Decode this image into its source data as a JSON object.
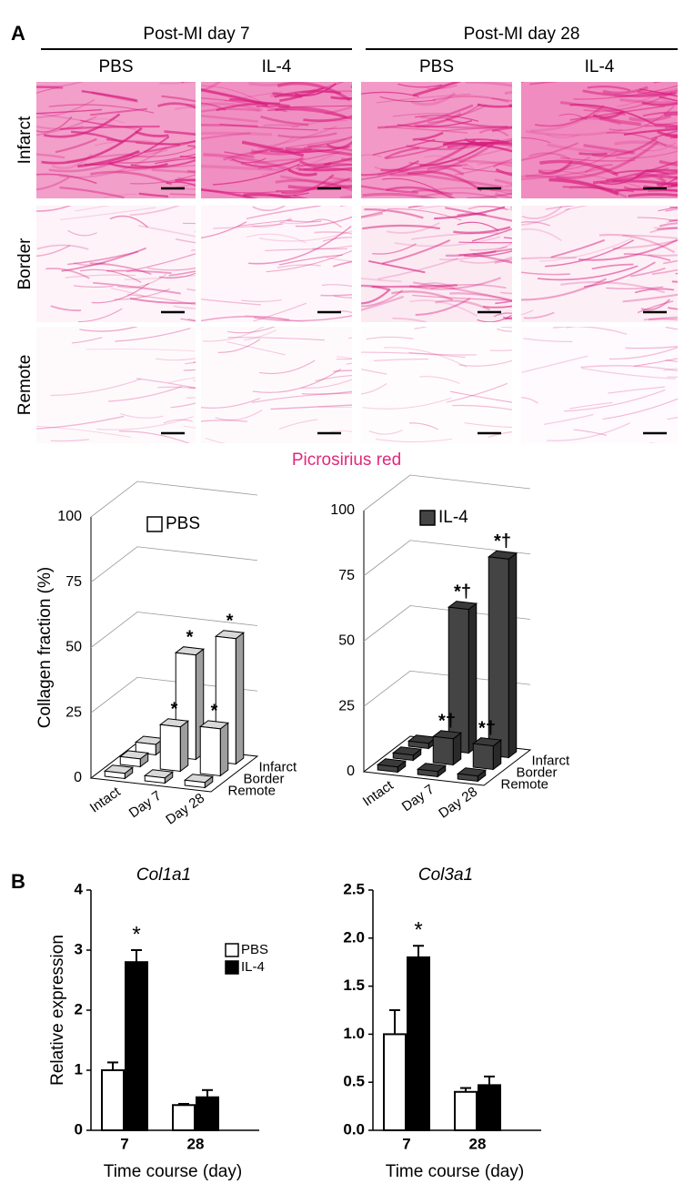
{
  "panel_a": {
    "label": "A",
    "groups": [
      {
        "title": "Post-MI day 7",
        "columns": [
          "PBS",
          "IL-4"
        ]
      },
      {
        "title": "Post-MI day 28",
        "columns": [
          "PBS",
          "IL-4"
        ]
      }
    ],
    "rows": [
      "Infarct",
      "Border",
      "Remote"
    ],
    "stain": "Picrosirius red"
  },
  "panel_b": {
    "label": "B"
  },
  "chart_data": [
    {
      "type": "bar3d",
      "legend_label": "PBS",
      "color": "#ffffff",
      "ylabel": "Collagen fraction (%)",
      "categories": [
        "Intact",
        "Day 7",
        "Day 28"
      ],
      "series": [
        {
          "name": "Remote",
          "values": [
            2,
            2,
            2
          ],
          "annotations": [
            null,
            null,
            null
          ]
        },
        {
          "name": "Border",
          "values": [
            3,
            17,
            18
          ],
          "annotations": [
            null,
            "*",
            "*"
          ]
        },
        {
          "name": "Infarct",
          "values": [
            4,
            40,
            48
          ],
          "annotations": [
            null,
            "*",
            "*"
          ]
        }
      ],
      "ylim": [
        0,
        100
      ],
      "yticks": [
        0,
        25,
        50,
        75,
        100
      ]
    },
    {
      "type": "bar3d",
      "legend_label": "IL-4",
      "color": "#444444",
      "categories": [
        "Intact",
        "Day 7",
        "Day 28"
      ],
      "series": [
        {
          "name": "Remote",
          "values": [
            2,
            2,
            2
          ],
          "annotations": [
            null,
            null,
            null
          ]
        },
        {
          "name": "Border",
          "values": [
            2,
            10,
            9
          ],
          "annotations": [
            null,
            "*†",
            "*†"
          ]
        },
        {
          "name": "Infarct",
          "values": [
            2,
            55,
            76
          ],
          "annotations": [
            null,
            "*†",
            "*†"
          ]
        }
      ],
      "ylim": [
        0,
        100
      ],
      "yticks": [
        0,
        25,
        50,
        75,
        100
      ]
    },
    {
      "type": "bar",
      "title": "Col1a1",
      "xlabel": "Time course (day)",
      "ylabel": "Relative expression",
      "legend": true,
      "categories": [
        "7",
        "28"
      ],
      "series": [
        {
          "name": "PBS",
          "color": "#ffffff",
          "values": [
            1.0,
            0.42
          ],
          "errors": [
            0.13,
            0.02
          ],
          "annotations": [
            null,
            null
          ]
        },
        {
          "name": "IL-4",
          "color": "#000000",
          "values": [
            2.8,
            0.55
          ],
          "errors": [
            0.2,
            0.12
          ],
          "annotations": [
            "*",
            null
          ]
        }
      ],
      "ylim": [
        0,
        4
      ],
      "yticks": [
        0,
        1,
        2,
        3,
        4
      ]
    },
    {
      "type": "bar",
      "title": "Col3a1",
      "xlabel": "Time course (day)",
      "legend": false,
      "categories": [
        "7",
        "28"
      ],
      "series": [
        {
          "name": "PBS",
          "color": "#ffffff",
          "values": [
            1.0,
            0.4
          ],
          "errors": [
            0.25,
            0.04
          ],
          "annotations": [
            null,
            null
          ]
        },
        {
          "name": "IL-4",
          "color": "#000000",
          "values": [
            1.8,
            0.47
          ],
          "errors": [
            0.12,
            0.09
          ],
          "annotations": [
            "*",
            null
          ]
        }
      ],
      "ylim": [
        0,
        2.5
      ],
      "yticks": [
        {
          "value": 0,
          "label": "0.0"
        },
        0.5,
        {
          "value": 1,
          "label": "1.0"
        },
        1.5,
        {
          "value": 2,
          "label": "2.0"
        },
        2.5
      ]
    }
  ]
}
